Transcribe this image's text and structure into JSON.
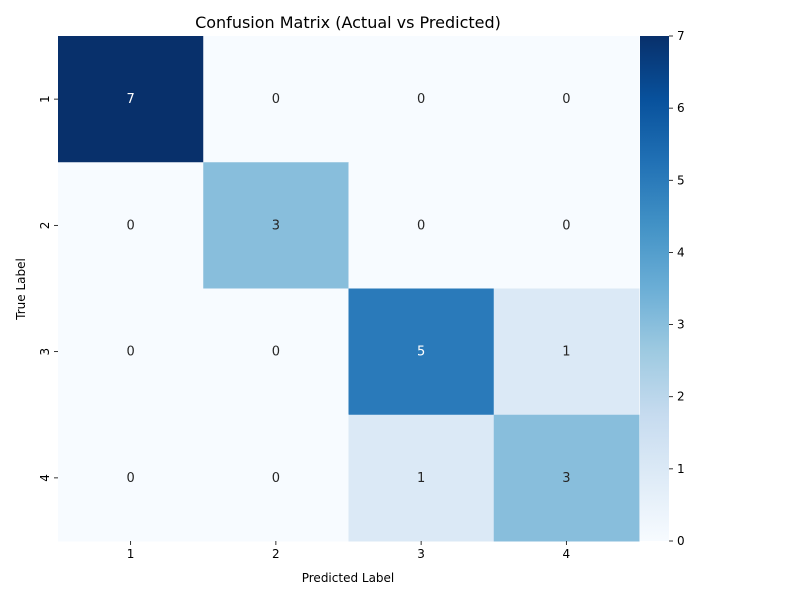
{
  "chart_data": {
    "type": "heatmap",
    "title": "Confusion Matrix (Actual vs Predicted)",
    "xlabel": "Predicted Label",
    "ylabel": "True Label",
    "x_categories": [
      "1",
      "2",
      "3",
      "4"
    ],
    "y_categories": [
      "1",
      "2",
      "3",
      "4"
    ],
    "matrix": [
      [
        7,
        0,
        0,
        0
      ],
      [
        0,
        3,
        0,
        0
      ],
      [
        0,
        0,
        5,
        1
      ],
      [
        0,
        0,
        1,
        3
      ]
    ],
    "color_range": [
      0,
      7
    ],
    "colorbar_ticks": [
      0,
      1,
      2,
      3,
      4,
      5,
      6,
      7
    ],
    "colormap": "Blues",
    "colormap_low": "#f7fbff",
    "colormap_high": "#08306b",
    "annotation_dark_text": "#262626",
    "annotation_light_text": "#ffffff"
  }
}
